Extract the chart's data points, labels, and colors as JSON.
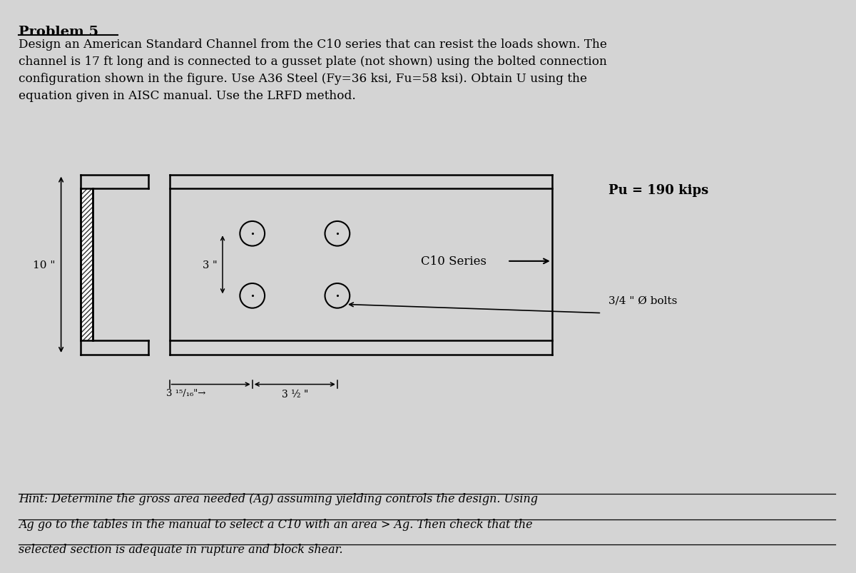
{
  "bg_color": "#d4d4d4",
  "title": "Problem 5",
  "problem_text": "Design an American Standard Channel from the C10 series that can resist the loads shown. The\nchannel is 17 ft long and is connected to a gusset plate (not shown) using the bolted connection\nconfiguration shown in the figure. Use A36 Steel (Fy=36 ksi, Fu=58 ksi). Obtain U using the\nequation given in AISC manual. Use the LRFD method.",
  "hint_text": "Hint: Determine the gross area needed (Ag) assuming yielding controls the design. Using\nAg go to the tables in the manual to select a C10 with an area > Ag. Then check that the\nselected section is adequate in rupture and block shear.",
  "dim_10": "10 \"",
  "dim_3v": "3 \"",
  "dim_3half": "3 ½ \"",
  "dim_3_16": "3 ¹⁵/₁₆\"",
  "label_c10": "C10 Series",
  "label_pu": "Pu = 190 kips",
  "label_bolts": "3/4 \" Ø bolts",
  "text_color": "#000000",
  "line_color": "#000000"
}
